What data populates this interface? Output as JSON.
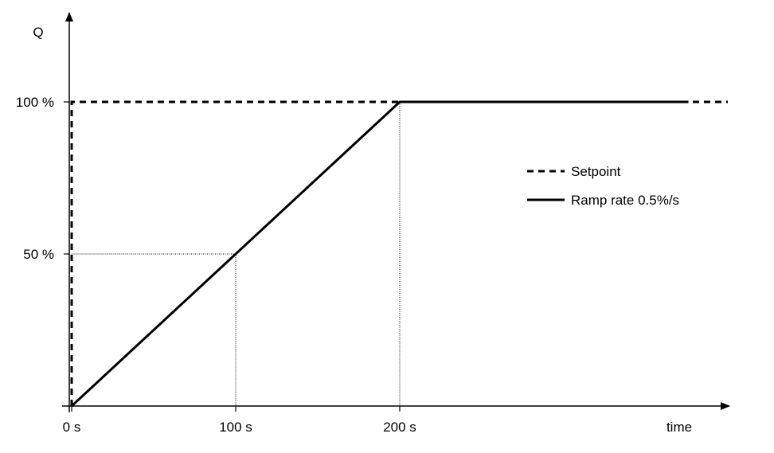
{
  "chart_data": {
    "type": "line",
    "title": "",
    "xlabel": "time",
    "ylabel": "Q",
    "x_ticks": [
      {
        "value": 0,
        "label": "0 s"
      },
      {
        "value": 100,
        "label": "100 s"
      },
      {
        "value": 200,
        "label": "200 s"
      }
    ],
    "y_ticks": [
      {
        "value": 50,
        "label": "50 %"
      },
      {
        "value": 100,
        "label": "100 %"
      }
    ],
    "xlim": [
      0,
      400
    ],
    "ylim": [
      0,
      100
    ],
    "grid": false,
    "legend_position": "right",
    "series": [
      {
        "name": "Setpoint",
        "style": "dashed",
        "color": "#000000",
        "points": [
          [
            0,
            0
          ],
          [
            0,
            100
          ],
          [
            400,
            100
          ]
        ]
      },
      {
        "name": "Ramp rate 0.5%/s",
        "style": "solid",
        "color": "#000000",
        "points": [
          [
            0,
            0
          ],
          [
            200,
            100
          ],
          [
            376,
            100
          ]
        ]
      }
    ],
    "guides": [
      {
        "points": [
          [
            0,
            50
          ],
          [
            100,
            50
          ],
          [
            100,
            0
          ]
        ]
      },
      {
        "points": [
          [
            200,
            100
          ],
          [
            200,
            0
          ]
        ]
      }
    ]
  }
}
